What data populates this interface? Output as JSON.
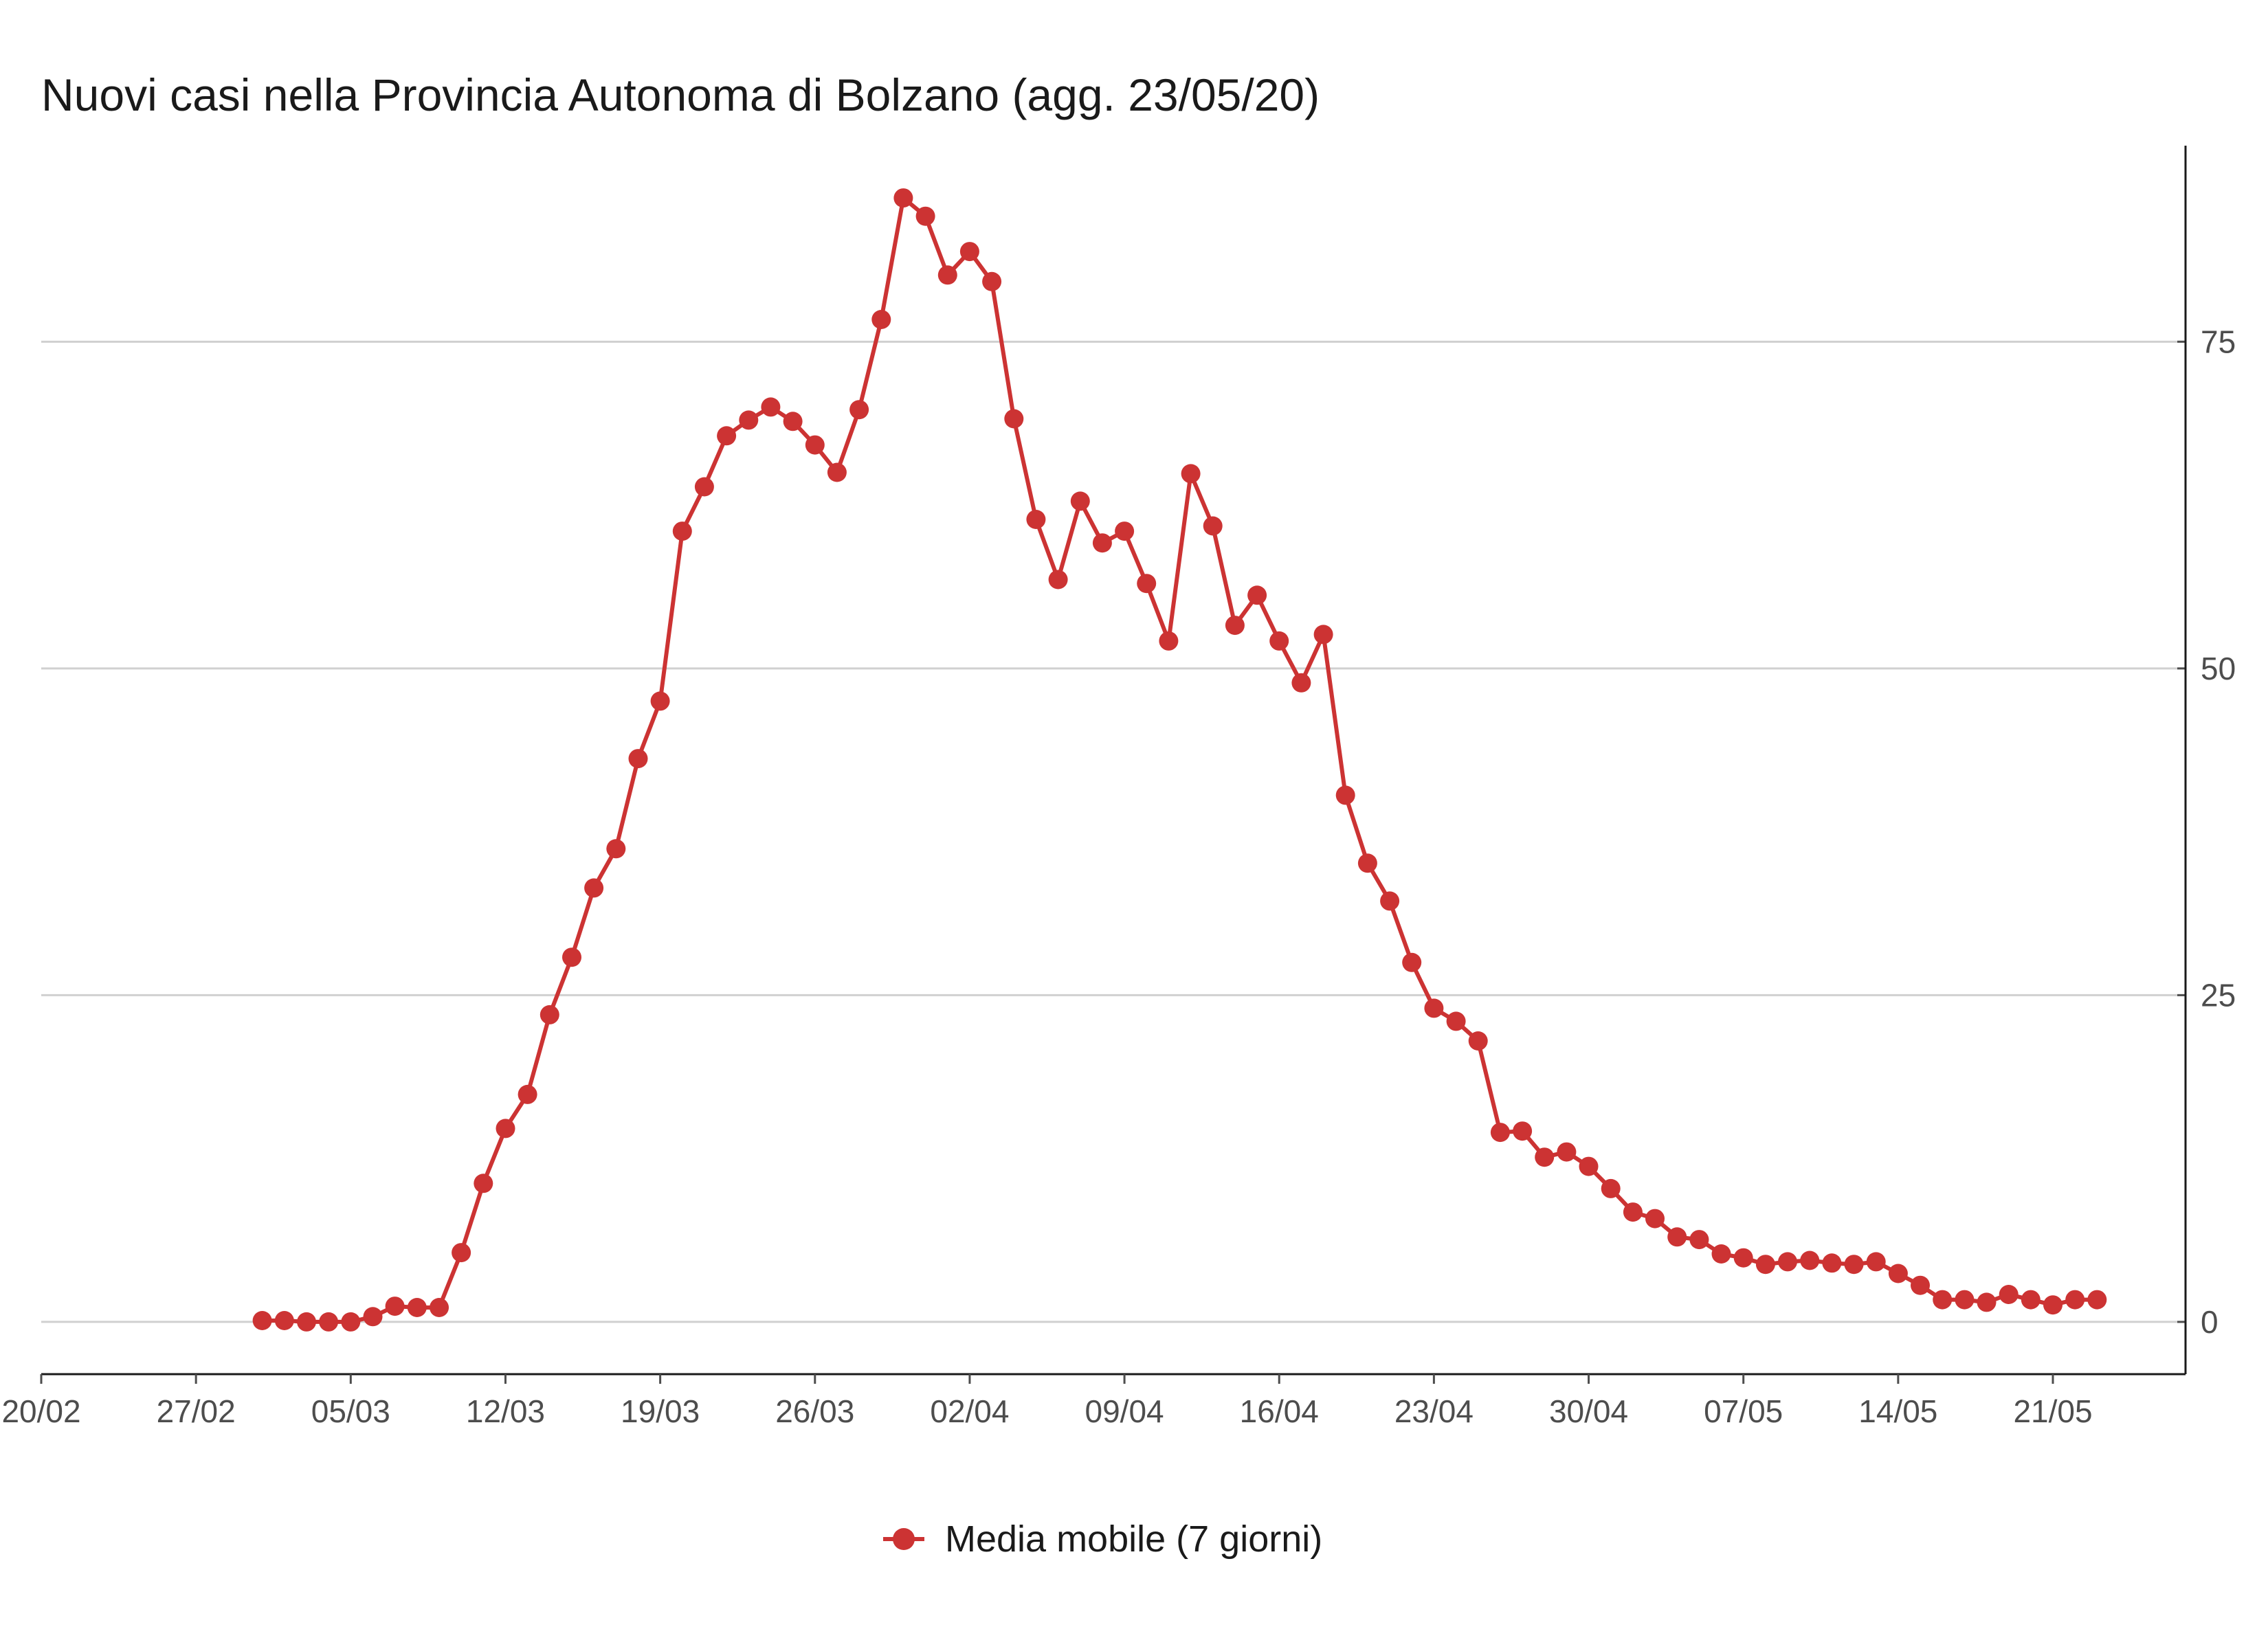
{
  "chart_data": {
    "type": "line",
    "title": "Nuovi casi nella Provincia Autonoma di Bolzano (agg. 23/05/20)",
    "xlabel": "",
    "ylabel": "",
    "x_axis": {
      "type": "date",
      "range": [
        "2020-02-20",
        "2020-05-27"
      ],
      "tick_labels": [
        "20/02",
        "27/02",
        "05/03",
        "12/03",
        "19/03",
        "26/03",
        "02/04",
        "09/04",
        "16/04",
        "23/04",
        "30/04",
        "07/05",
        "14/05",
        "21/05"
      ]
    },
    "y_axis": {
      "position": "right",
      "range": [
        -4,
        90
      ],
      "ticks": [
        0,
        25,
        50,
        75
      ]
    },
    "grid": "horizontal",
    "legend_position": "bottom",
    "series": [
      {
        "name": "Media mobile (7 giorni)",
        "color": "#cc3333",
        "x_start": "2020-03-01",
        "x_step_days": 1,
        "values": [
          0.1,
          0.1,
          0,
          0,
          0,
          0.4,
          1.2,
          1.1,
          1.1,
          5.3,
          10.6,
          14.8,
          17.4,
          23.5,
          27.9,
          33.2,
          36.2,
          43.1,
          47.5,
          60.5,
          63.9,
          67.8,
          69,
          70,
          68.9,
          67.1,
          65,
          69.8,
          76.7,
          86,
          84.6,
          80.1,
          81.9,
          79.6,
          69.1,
          61.4,
          56.8,
          62.8,
          59.6,
          60.5,
          56.5,
          52.1,
          64.9,
          60.9,
          53.3,
          55.6,
          52.1,
          48.9,
          52.6,
          40.3,
          35.1,
          32.2,
          27.5,
          24,
          23,
          21.5,
          14.5,
          14.6,
          12.6,
          13,
          11.9,
          10.2,
          8.4,
          7.9,
          6.5,
          6.3,
          5.2,
          4.9,
          4.4,
          4.6,
          4.7,
          4.5,
          4.4,
          4.6,
          3.7,
          2.8,
          1.7,
          1.7,
          1.5,
          2.1,
          1.7,
          1.3,
          1.7,
          1.7
        ]
      }
    ]
  }
}
